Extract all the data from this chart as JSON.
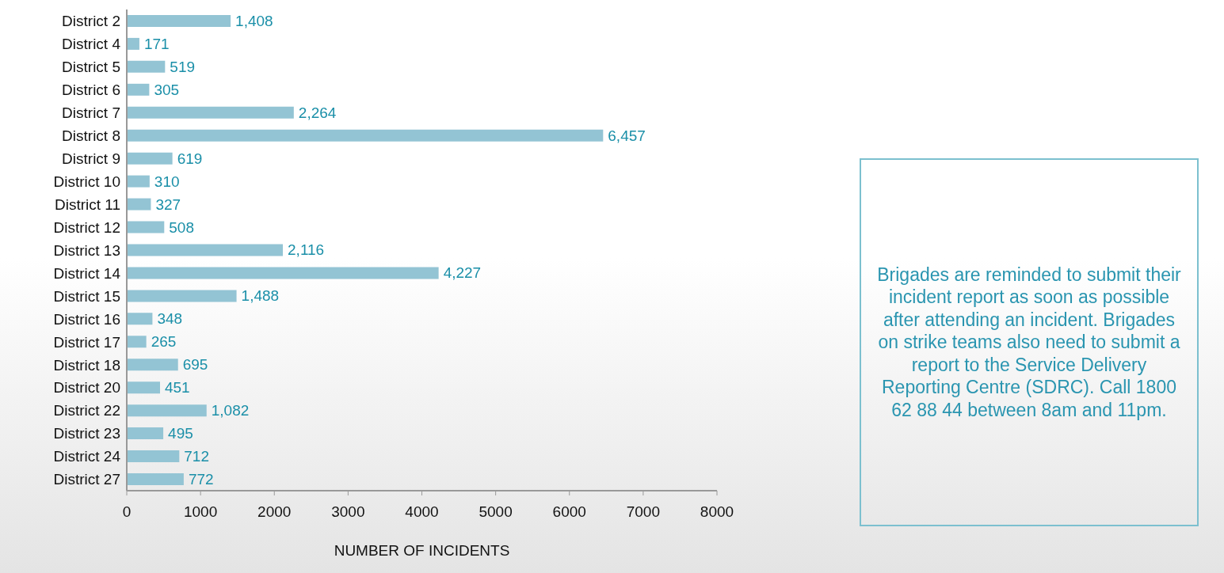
{
  "chart_data": {
    "type": "bar",
    "orientation": "horizontal",
    "xlabel": "NUMBER OF INCIDENTS",
    "categories": [
      "District 2",
      "District 4",
      "District 5",
      "District 6",
      "District 7",
      "District 8",
      "District 9",
      "District 10",
      "District 11",
      "District 12",
      "District 13",
      "District 14",
      "District 15",
      "District 16",
      "District 17",
      "District 18",
      "District 20",
      "District 22",
      "District 23",
      "District 24",
      "District 27"
    ],
    "values": [
      1408,
      171,
      519,
      305,
      2264,
      6457,
      619,
      310,
      327,
      508,
      2116,
      4227,
      1488,
      348,
      265,
      695,
      451,
      1082,
      495,
      712,
      772
    ],
    "value_labels": [
      "1,408",
      "171",
      "519",
      "305",
      "2,264",
      "6,457",
      "619",
      "310",
      "327",
      "508",
      "2,116",
      "4,227",
      "1,488",
      "348",
      "265",
      "695",
      "451",
      "1,082",
      "495",
      "712",
      "772"
    ],
    "color": "#93c4d4",
    "xlim": [
      0,
      8000
    ],
    "xticks": [
      0,
      1000,
      2000,
      3000,
      4000,
      5000,
      6000,
      7000,
      8000
    ],
    "grid": false,
    "legend": false,
    "annotations": [
      "Brigades are reminded to submit their incident report as soon as possible after attending an incident. Brigades on strike teams also need to submit a report to the Service Delivery Reporting Centre (SDRC). Call 1800 62 88 44 between 8am and 11pm."
    ]
  }
}
